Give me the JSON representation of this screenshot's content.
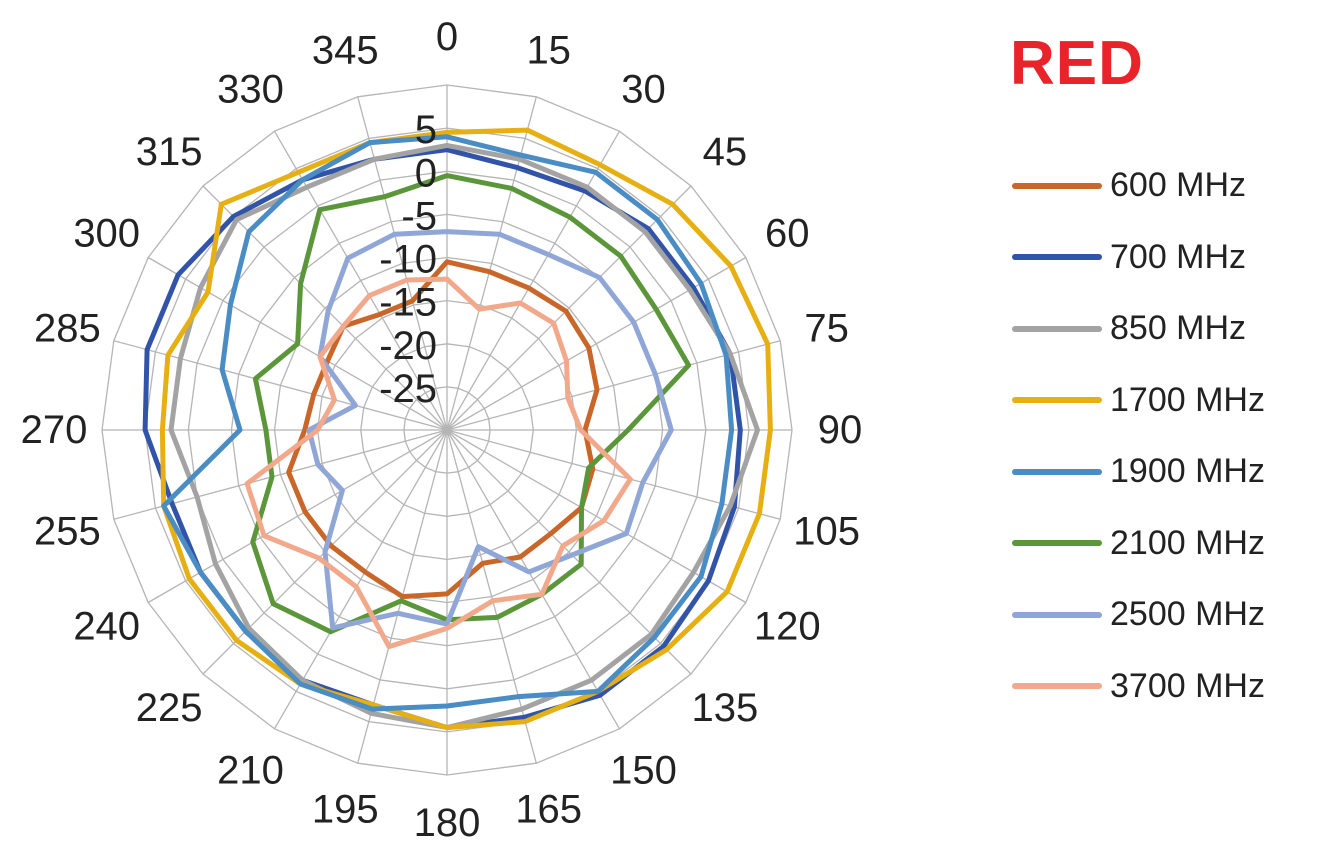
{
  "chart_data": {
    "type": "radar",
    "title": "RED",
    "angles": [
      0,
      15,
      30,
      45,
      60,
      75,
      90,
      105,
      120,
      135,
      150,
      165,
      180,
      195,
      210,
      225,
      240,
      255,
      270,
      285,
      300,
      315,
      330,
      345
    ],
    "angle_labels": [
      "0",
      "15",
      "30",
      "45",
      "60",
      "75",
      "90",
      "105",
      "120",
      "135",
      "150",
      "165",
      "180",
      "195",
      "210",
      "225",
      "240",
      "255",
      "270",
      "285",
      "300",
      "315",
      "330",
      "345"
    ],
    "radial_ticks": [
      "5",
      "0",
      "-5",
      "-10",
      "-15",
      "-20",
      "-25"
    ],
    "radial_min": -30,
    "radial_max": 10,
    "grid": true,
    "legend_position": "right",
    "series": [
      {
        "name": "600 MHz",
        "color": "#c9672a",
        "values": [
          -10.5,
          -11,
          -11,
          -10.5,
          -11,
          -12,
          -14,
          -12.5,
          -12,
          -13,
          -13,
          -14,
          -11,
          -10,
          -11,
          -11,
          -11,
          -11,
          -13.5,
          -14,
          -14,
          -13,
          -14.5,
          -14.5
        ]
      },
      {
        "name": "700 MHz",
        "color": "#3154a8",
        "values": [
          2.5,
          1.5,
          2,
          3,
          3,
          4,
          4,
          4.5,
          5,
          5.5,
          5.5,
          4.5,
          4.5,
          3,
          3.5,
          3,
          3,
          3,
          5,
          6,
          6,
          5,
          3.5,
          2.5
        ]
      },
      {
        "name": "850 MHz",
        "color": "#a3a3a3",
        "values": [
          3,
          2.5,
          2.5,
          2.5,
          2.5,
          4,
          6,
          4,
          3,
          3.5,
          3.5,
          3.5,
          4.5,
          4,
          3.5,
          2.5,
          1,
          0,
          2,
          2,
          3,
          4.5,
          2.5,
          2.5
        ]
      },
      {
        "name": "1700 MHz",
        "color": "#e6af12",
        "values": [
          4.5,
          6,
          5.5,
          7,
          8,
          8.5,
          7.5,
          7.5,
          7.5,
          6,
          5,
          5,
          4.5,
          3,
          4,
          4.5,
          4.5,
          4,
          3,
          3.5,
          2,
          7,
          4.5,
          4.5
        ]
      },
      {
        "name": "1900 MHz",
        "color": "#4a8cc4",
        "values": [
          4,
          3,
          4.5,
          4.5,
          4,
          3.5,
          3,
          3,
          4,
          4,
          5,
          2,
          2,
          3.5,
          4,
          3,
          3,
          4,
          -6,
          -3,
          -1,
          2.5,
          3.5,
          4.5
        ]
      },
      {
        "name": "2100 MHz",
        "color": "#5b973a",
        "values": [
          -0.5,
          -1,
          -1.5,
          -1.5,
          -2,
          -1,
          -9,
          -13,
          -12,
          -8,
          -8,
          -7.5,
          -8,
          -9.5,
          -3,
          -1.5,
          -4,
          -9,
          -9,
          -7,
          -10,
          -6,
          -0.5,
          -2
        ]
      },
      {
        "name": "2500 MHz",
        "color": "#8fa6d6",
        "values": [
          -7,
          -6.5,
          -6.5,
          -5,
          -5,
          -5,
          -4,
          -6.5,
          -6,
          -9.5,
          -11,
          -16,
          -7.5,
          -8,
          -3.5,
          -10,
          -16,
          -14.5,
          -14,
          -19,
          -13,
          -10.5,
          -7,
          -6.5
        ]
      },
      {
        "name": "3700 MHz",
        "color": "#f2a88a",
        "values": [
          -12.5,
          -15.5,
          -13,
          -12.5,
          -14,
          -15.5,
          -14.5,
          -8,
          -9,
          -11,
          -8,
          -9.5,
          -7,
          -4,
          -9,
          -9,
          -5.5,
          -6,
          -15,
          -16.5,
          -13,
          -13,
          -12,
          -12
        ]
      }
    ]
  }
}
